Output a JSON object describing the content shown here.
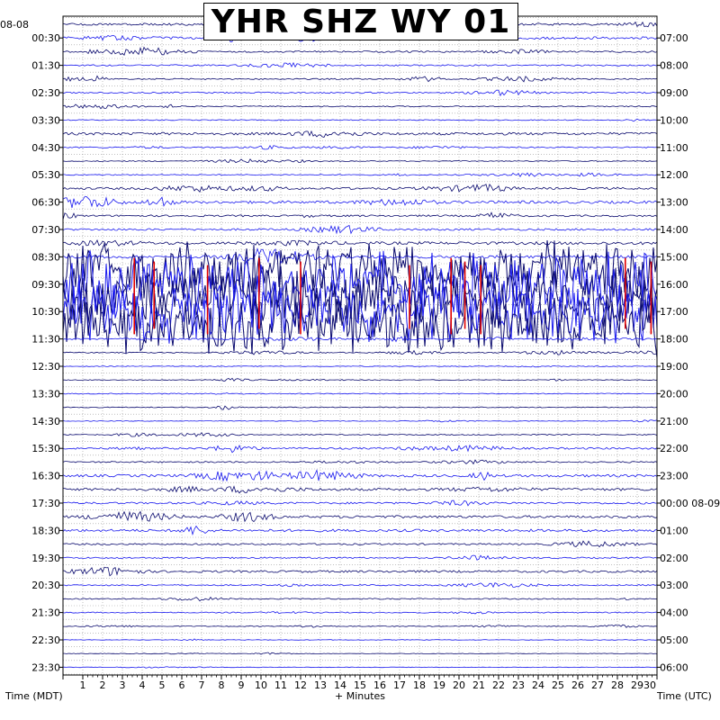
{
  "title": "YHR SHZ WY 01",
  "date_left": "08-08",
  "labels": {
    "left_axis": "Time (MDT)",
    "bottom_axis": "+ Minutes",
    "right_axis": "Time (UTC)"
  },
  "colors": {
    "trace_dark": "#0a0a6e",
    "trace_blue": "#1a1aee",
    "trace_red": "#e00000",
    "grid": "#9a9a9a",
    "frame": "#000000",
    "background": "#ffffff"
  },
  "chart_data": {
    "type": "helicorder",
    "title": "YHR SHZ WY 01",
    "xlabel": "+ Minutes",
    "ylabel_left": "Time (MDT)",
    "ylabel_right": "Time (UTC)",
    "xlim": [
      0,
      30
    ],
    "x_ticks": [
      1,
      2,
      3,
      4,
      5,
      6,
      7,
      8,
      9,
      10,
      11,
      12,
      13,
      14,
      15,
      16,
      17,
      18,
      19,
      20,
      21,
      22,
      23,
      24,
      25,
      26,
      27,
      28,
      29,
      30
    ],
    "line_count": 48,
    "minutes_per_line": 30,
    "left_time_labels": [
      "00:30",
      "01:30",
      "02:30",
      "03:30",
      "04:30",
      "05:30",
      "06:30",
      "07:30",
      "08:30",
      "09:30",
      "10:30",
      "11:30",
      "12:30",
      "13:30",
      "14:30",
      "15:30",
      "16:30",
      "17:30",
      "18:30",
      "19:30",
      "20:30",
      "21:30",
      "22:30",
      "23:30"
    ],
    "right_time_labels": [
      "07:00",
      "08:00",
      "09:00",
      "10:00",
      "11:00",
      "12:00",
      "13:00",
      "14:00",
      "15:00",
      "16:00",
      "17:00",
      "18:00",
      "19:00",
      "20:00",
      "21:00",
      "22:00",
      "23:00",
      "00:00 08-09",
      "01:00",
      "02:00",
      "03:00",
      "04:00",
      "05:00",
      "06:00"
    ],
    "line_activity": [
      1.2,
      1.4,
      0.9,
      0.8,
      0.7,
      0.8,
      0.6,
      0.5,
      1.4,
      0.7,
      0.5,
      0.6,
      1.2,
      1.5,
      1.0,
      1.1,
      1.6,
      1.6,
      4.5,
      4.5,
      4.5,
      4.5,
      4.5,
      0.8,
      0.6,
      0.4,
      0.4,
      0.5,
      0.5,
      0.4,
      0.6,
      1.0,
      0.8,
      1.4,
      1.4,
      1.1,
      1.4,
      1.4,
      0.9,
      0.8,
      1.2,
      0.7,
      0.6,
      0.6,
      0.5,
      0.3,
      0.3,
      0.3
    ]
  }
}
